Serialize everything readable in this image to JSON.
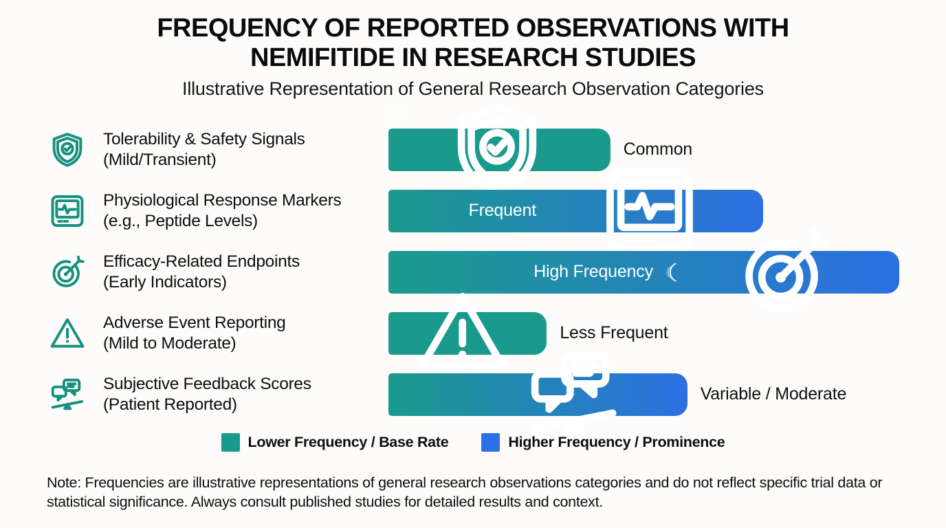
{
  "header": {
    "title": "FREQUENCY OF REPORTED OBSERVATIONS WITH NEMIFITIDE IN RESEARCH STUDIES",
    "subtitle": "Illustrative Representation of General Research Observation Categories"
  },
  "rows": [
    {
      "icon": "shield-check",
      "label_line1": "Tolerability & Safety Signals",
      "label_line2": "(Mild/Transient)",
      "bar": {
        "width_pct": 39.8,
        "fill": "solid",
        "inner_label": "",
        "outer_label": "Common"
      }
    },
    {
      "icon": "vitals-monitor",
      "label_line1": "Physiological Response Markers",
      "label_line2": "(e.g., Peptide Levels)",
      "bar": {
        "width_pct": 67.2,
        "fill": "gradient",
        "inner_label": "Frequent",
        "outer_label": ""
      }
    },
    {
      "icon": "target-dart",
      "label_line1": "Efficacy-Related Endpoints",
      "label_line2": "(Early Indicators)",
      "bar": {
        "width_pct": 91.6,
        "fill": "gradient",
        "inner_label": "High Frequency",
        "outer_label": ""
      }
    },
    {
      "icon": "warning-triangle",
      "label_line1": "Adverse Event Reporting",
      "label_line2": "(Mild to Moderate)",
      "bar": {
        "width_pct": 28.4,
        "fill": "solid",
        "inner_label": "",
        "outer_label": "Less Frequent"
      }
    },
    {
      "icon": "feedback-balance",
      "label_line1": "Subjective Feedback Scores",
      "label_line2": "(Patient Reported)",
      "bar": {
        "width_pct": 53.6,
        "fill": "gradient",
        "inner_label": "",
        "outer_label": "Variable / Moderate"
      }
    }
  ],
  "legend": [
    {
      "color": "#1A9A8C",
      "label": "Lower Frequency / Base Rate"
    },
    {
      "color": "#2B70E8",
      "label": "Higher Frequency / Prominence"
    }
  ],
  "note": "Note: Frequencies are illustrative representations of general research observations categories and do not reflect specific trial data or statistical significance. Always consult published studies for detailed results and context.",
  "colors": {
    "teal": "#1A9A8C",
    "blue": "#2D6FE3",
    "background": "#fdfcfa",
    "text": "#111111",
    "bar_label_inside": "#ffffff"
  },
  "chart_data": {
    "type": "bar",
    "orientation": "horizontal",
    "title": "FREQUENCY OF REPORTED OBSERVATIONS WITH NEMIFITIDE IN RESEARCH STUDIES",
    "subtitle": "Illustrative Representation of General Research Observation Categories",
    "categories": [
      "Tolerability & Safety Signals (Mild/Transient)",
      "Physiological Response Markers (e.g., Peptide Levels)",
      "Efficacy-Related Endpoints (Early Indicators)",
      "Adverse Event Reporting (Mild to Moderate)",
      "Subjective Feedback Scores (Patient Reported)"
    ],
    "values": [
      43,
      73,
      100,
      31,
      59
    ],
    "value_labels": [
      "Common",
      "Frequent",
      "High Frequency",
      "Less Frequent",
      "Variable / Moderate"
    ],
    "units": "illustrative relative frequency (% of longest bar)",
    "xlim": [
      0,
      100
    ],
    "grid": false,
    "legend": [
      "Lower Frequency / Base Rate",
      "Higher Frequency / Prominence"
    ],
    "legend_position": "bottom",
    "annotations": [
      "Note: Frequencies are illustrative representations of general research observations categories and do not reflect specific trial data or statistical significance. Always consult published studies for detailed results and context."
    ]
  }
}
